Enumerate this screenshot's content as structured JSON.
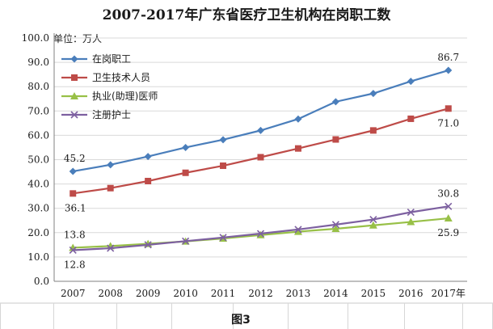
{
  "chart_data": {
    "type": "line",
    "title": "2007-2017年广东省医疗卫生机构在岗职工数",
    "ylabel": "单位：万人",
    "xlabel": "",
    "ylim": [
      0,
      100
    ],
    "yticks": [
      "0.0",
      "10.0",
      "20.0",
      "30.0",
      "40.0",
      "50.0",
      "60.0",
      "70.0",
      "80.0",
      "90.0",
      "100.0"
    ],
    "categories": [
      "2007",
      "2008",
      "2009",
      "2010",
      "2011",
      "2012",
      "2013",
      "2014",
      "2015",
      "2016",
      "2017年"
    ],
    "grid": true,
    "legend_position": "top-left",
    "series": [
      {
        "name": "在岗职工",
        "color": "#4a7ebb",
        "marker": "diamond",
        "values": [
          45.2,
          47.9,
          51.3,
          55.0,
          58.2,
          62.0,
          66.7,
          73.8,
          77.2,
          82.2,
          86.7
        ],
        "labels": [
          {
            "index": 0,
            "text": "45.2"
          },
          {
            "index": 10,
            "text": "86.7"
          }
        ]
      },
      {
        "name": "卫生技术人员",
        "color": "#be4b48",
        "marker": "square",
        "values": [
          36.1,
          38.3,
          41.2,
          44.6,
          47.5,
          51.0,
          54.6,
          58.3,
          62.0,
          66.8,
          71.0
        ],
        "labels": [
          {
            "index": 0,
            "text": "36.1"
          },
          {
            "index": 10,
            "text": "71.0"
          }
        ]
      },
      {
        "name": "执业(助理)医师",
        "color": "#98c047",
        "marker": "triangle",
        "values": [
          13.8,
          14.5,
          15.4,
          16.4,
          17.6,
          19.0,
          20.4,
          21.6,
          23.0,
          24.4,
          25.9
        ],
        "labels": [
          {
            "index": 0,
            "text": "13.8"
          },
          {
            "index": 10,
            "text": "25.9"
          }
        ]
      },
      {
        "name": "注册护士",
        "color": "#7d60a0",
        "marker": "x",
        "values": [
          12.8,
          13.6,
          15.0,
          16.5,
          18.0,
          19.6,
          21.3,
          23.3,
          25.4,
          28.4,
          30.8
        ],
        "labels": [
          {
            "index": 0,
            "text": "12.8"
          },
          {
            "index": 10,
            "text": "30.8"
          }
        ]
      }
    ]
  },
  "caption": "图3"
}
